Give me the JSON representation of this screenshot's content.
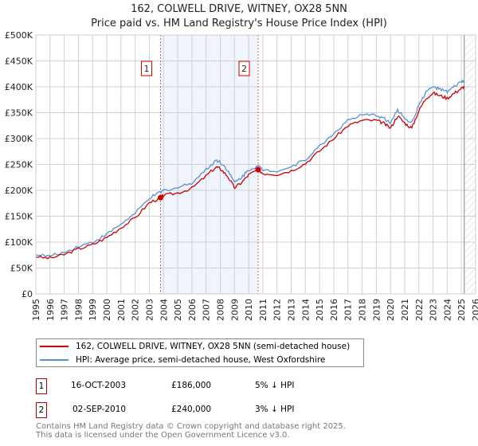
{
  "chart_data": {
    "type": "line",
    "title": "162, COLWELL DRIVE, WITNEY, OX28 5NN",
    "subtitle": "Price paid vs. HM Land Registry's House Price Index (HPI)",
    "xlim": [
      1995,
      2026
    ],
    "ylim": [
      0,
      500000
    ],
    "x_ticks": [
      "1995",
      "1996",
      "1997",
      "1998",
      "1999",
      "2000",
      "2001",
      "2002",
      "2003",
      "2004",
      "2005",
      "2006",
      "2007",
      "2008",
      "2009",
      "2010",
      "2011",
      "2012",
      "2013",
      "2014",
      "2015",
      "2016",
      "2017",
      "2018",
      "2019",
      "2020",
      "2021",
      "2022",
      "2023",
      "2024",
      "2025",
      "2026"
    ],
    "y_ticks": [
      {
        "v": 0,
        "label": "£0"
      },
      {
        "v": 50000,
        "label": "£50K"
      },
      {
        "v": 100000,
        "label": "£100K"
      },
      {
        "v": 150000,
        "label": "£150K"
      },
      {
        "v": 200000,
        "label": "£200K"
      },
      {
        "v": 250000,
        "label": "£250K"
      },
      {
        "v": 300000,
        "label": "£300K"
      },
      {
        "v": 350000,
        "label": "£350K"
      },
      {
        "v": 400000,
        "label": "£400K"
      },
      {
        "v": 450000,
        "label": "£450K"
      },
      {
        "v": 500000,
        "label": "£500K"
      }
    ],
    "grid": true,
    "shaded_range": [
      2003.79,
      2010.67
    ],
    "hatched_from": 2025.2,
    "series": [
      {
        "name": "162, COLWELL DRIVE, WITNEY, OX28 5NN (semi-detached house)",
        "color": "#cc0000",
        "x": [
          1995,
          1996,
          1997,
          1998,
          1999,
          2000,
          2001,
          2002,
          2003,
          2003.79,
          2004,
          2005,
          2006,
          2007,
          2007.7,
          2008,
          2008.5,
          2009,
          2009.5,
          2010,
          2010.67,
          2011,
          2012,
          2013,
          2014,
          2015,
          2016,
          2017,
          2018,
          2019,
          2019.5,
          2020,
          2020.5,
          2021,
          2021.5,
          2022,
          2022.5,
          2023,
          2023.5,
          2024,
          2024.5,
          2025,
          2025.2
        ],
        "y": [
          71000,
          69000,
          76000,
          87000,
          95000,
          109000,
          128000,
          147000,
          176000,
          186000,
          190000,
          195000,
          204000,
          228000,
          245000,
          242000,
          228000,
          205000,
          215000,
          230000,
          240000,
          233000,
          231000,
          238000,
          252000,
          276000,
          300000,
          325000,
          335000,
          335000,
          330000,
          320000,
          344000,
          330000,
          320000,
          354000,
          378000,
          388000,
          383000,
          378000,
          388000,
          397000,
          400000
        ]
      },
      {
        "name": "HPI: Average price, semi-detached house, West Oxfordshire",
        "color": "#5b8fd4",
        "x": [
          1995,
          1996,
          1997,
          1998,
          1999,
          2000,
          2001,
          2002,
          2003,
          2003.79,
          2004,
          2005,
          2006,
          2007,
          2007.7,
          2008,
          2008.5,
          2009,
          2009.5,
          2010,
          2010.67,
          2011,
          2012,
          2013,
          2014,
          2015,
          2016,
          2017,
          2018,
          2019,
          2019.5,
          2020,
          2020.5,
          2021,
          2021.5,
          2022,
          2022.5,
          2023,
          2023.5,
          2024,
          2024.5,
          2025,
          2025.2
        ],
        "y": [
          75000,
          73000,
          80000,
          92000,
          100000,
          115000,
          135000,
          155000,
          185000,
          196000,
          200000,
          205000,
          215000,
          240000,
          258000,
          255000,
          240000,
          215000,
          225000,
          240000,
          247000,
          240000,
          238000,
          245000,
          260000,
          285000,
          310000,
          335000,
          345000,
          345000,
          340000,
          330000,
          355000,
          340000,
          330000,
          365000,
          390000,
          400000,
          395000,
          390000,
          400000,
          410000,
          412000
        ]
      }
    ],
    "sales": [
      {
        "n": "1",
        "x": 2003.79,
        "y": 186000
      },
      {
        "n": "2",
        "x": 2010.67,
        "y": 240000
      }
    ]
  },
  "legend": [
    "162, COLWELL DRIVE, WITNEY, OX28 5NN (semi-detached house)",
    "HPI: Average price, semi-detached house, West Oxfordshire"
  ],
  "table": [
    {
      "n": "1",
      "date": "16-OCT-2003",
      "price": "£186,000",
      "hpi": "5% ↓ HPI"
    },
    {
      "n": "2",
      "date": "02-SEP-2010",
      "price": "£240,000",
      "hpi": "3% ↓ HPI"
    }
  ],
  "footer": [
    "Contains HM Land Registry data © Crown copyright and database right 2025.",
    "This data is licensed under the Open Government Licence v3.0."
  ]
}
